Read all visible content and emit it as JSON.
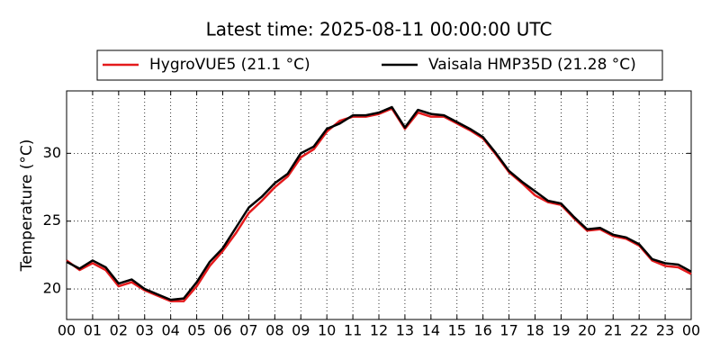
{
  "chart_data": {
    "type": "line",
    "title": "Latest time: 2025-08-11 00:00:00 UTC",
    "ylabel": "Temperature (°C)",
    "x": [
      0,
      0.5,
      1,
      1.5,
      2,
      2.5,
      3,
      3.5,
      4,
      4.5,
      5,
      5.5,
      6,
      6.5,
      7,
      7.5,
      8,
      8.5,
      9,
      9.5,
      10,
      10.5,
      11,
      11.5,
      12,
      12.5,
      13,
      13.5,
      14,
      14.5,
      15,
      15.5,
      16,
      16.5,
      17,
      17.5,
      18,
      18.5,
      19,
      19.5,
      20,
      20.5,
      21,
      21.5,
      22,
      22.5,
      23,
      23.5,
      24
    ],
    "series": [
      {
        "name": "HygroVUE5 (21.1 °C)",
        "color": "#e41a1c",
        "values": [
          22.1,
          21.4,
          21.9,
          21.4,
          20.2,
          20.5,
          19.9,
          19.5,
          19.1,
          19.1,
          20.2,
          21.7,
          22.8,
          24.1,
          25.6,
          26.5,
          27.5,
          28.3,
          29.7,
          30.3,
          31.6,
          32.4,
          32.7,
          32.7,
          32.9,
          33.3,
          31.8,
          33.0,
          32.7,
          32.7,
          32.2,
          31.7,
          31.1,
          29.9,
          28.6,
          27.8,
          26.9,
          26.4,
          26.2,
          25.2,
          24.3,
          24.4,
          23.9,
          23.7,
          23.2,
          22.1,
          21.7,
          21.6,
          21.1
        ]
      },
      {
        "name": "Vaisala HMP35D (21.28 °C)",
        "color": "#000000",
        "values": [
          22.0,
          21.5,
          22.1,
          21.6,
          20.4,
          20.7,
          20.0,
          19.6,
          19.2,
          19.3,
          20.5,
          22.0,
          23.0,
          24.5,
          26.0,
          26.8,
          27.8,
          28.5,
          30.0,
          30.5,
          31.8,
          32.2,
          32.8,
          32.8,
          33.0,
          33.4,
          31.9,
          33.2,
          32.9,
          32.8,
          32.3,
          31.8,
          31.2,
          30.0,
          28.7,
          27.9,
          27.2,
          26.5,
          26.3,
          25.3,
          24.4,
          24.5,
          24.0,
          23.8,
          23.3,
          22.2,
          21.9,
          21.8,
          21.28
        ]
      }
    ],
    "xlim": [
      0,
      24
    ],
    "xticks": [
      {
        "value": 0,
        "label": "00"
      },
      {
        "value": 1,
        "label": "01"
      },
      {
        "value": 2,
        "label": "02"
      },
      {
        "value": 3,
        "label": "03"
      },
      {
        "value": 4,
        "label": "04"
      },
      {
        "value": 5,
        "label": "05"
      },
      {
        "value": 6,
        "label": "06"
      },
      {
        "value": 7,
        "label": "07"
      },
      {
        "value": 8,
        "label": "08"
      },
      {
        "value": 9,
        "label": "09"
      },
      {
        "value": 10,
        "label": "10"
      },
      {
        "value": 11,
        "label": "11"
      },
      {
        "value": 12,
        "label": "12"
      },
      {
        "value": 13,
        "label": "13"
      },
      {
        "value": 14,
        "label": "14"
      },
      {
        "value": 15,
        "label": "15"
      },
      {
        "value": 16,
        "label": "16"
      },
      {
        "value": 17,
        "label": "17"
      },
      {
        "value": 18,
        "label": "18"
      },
      {
        "value": 19,
        "label": "19"
      },
      {
        "value": 20,
        "label": "20"
      },
      {
        "value": 21,
        "label": "21"
      },
      {
        "value": 22,
        "label": "22"
      },
      {
        "value": 23,
        "label": "23"
      },
      {
        "value": 24,
        "label": "00"
      }
    ],
    "ylim": [
      17.75,
      34.6
    ],
    "yticks": [
      20,
      25,
      30
    ],
    "grid": true
  }
}
